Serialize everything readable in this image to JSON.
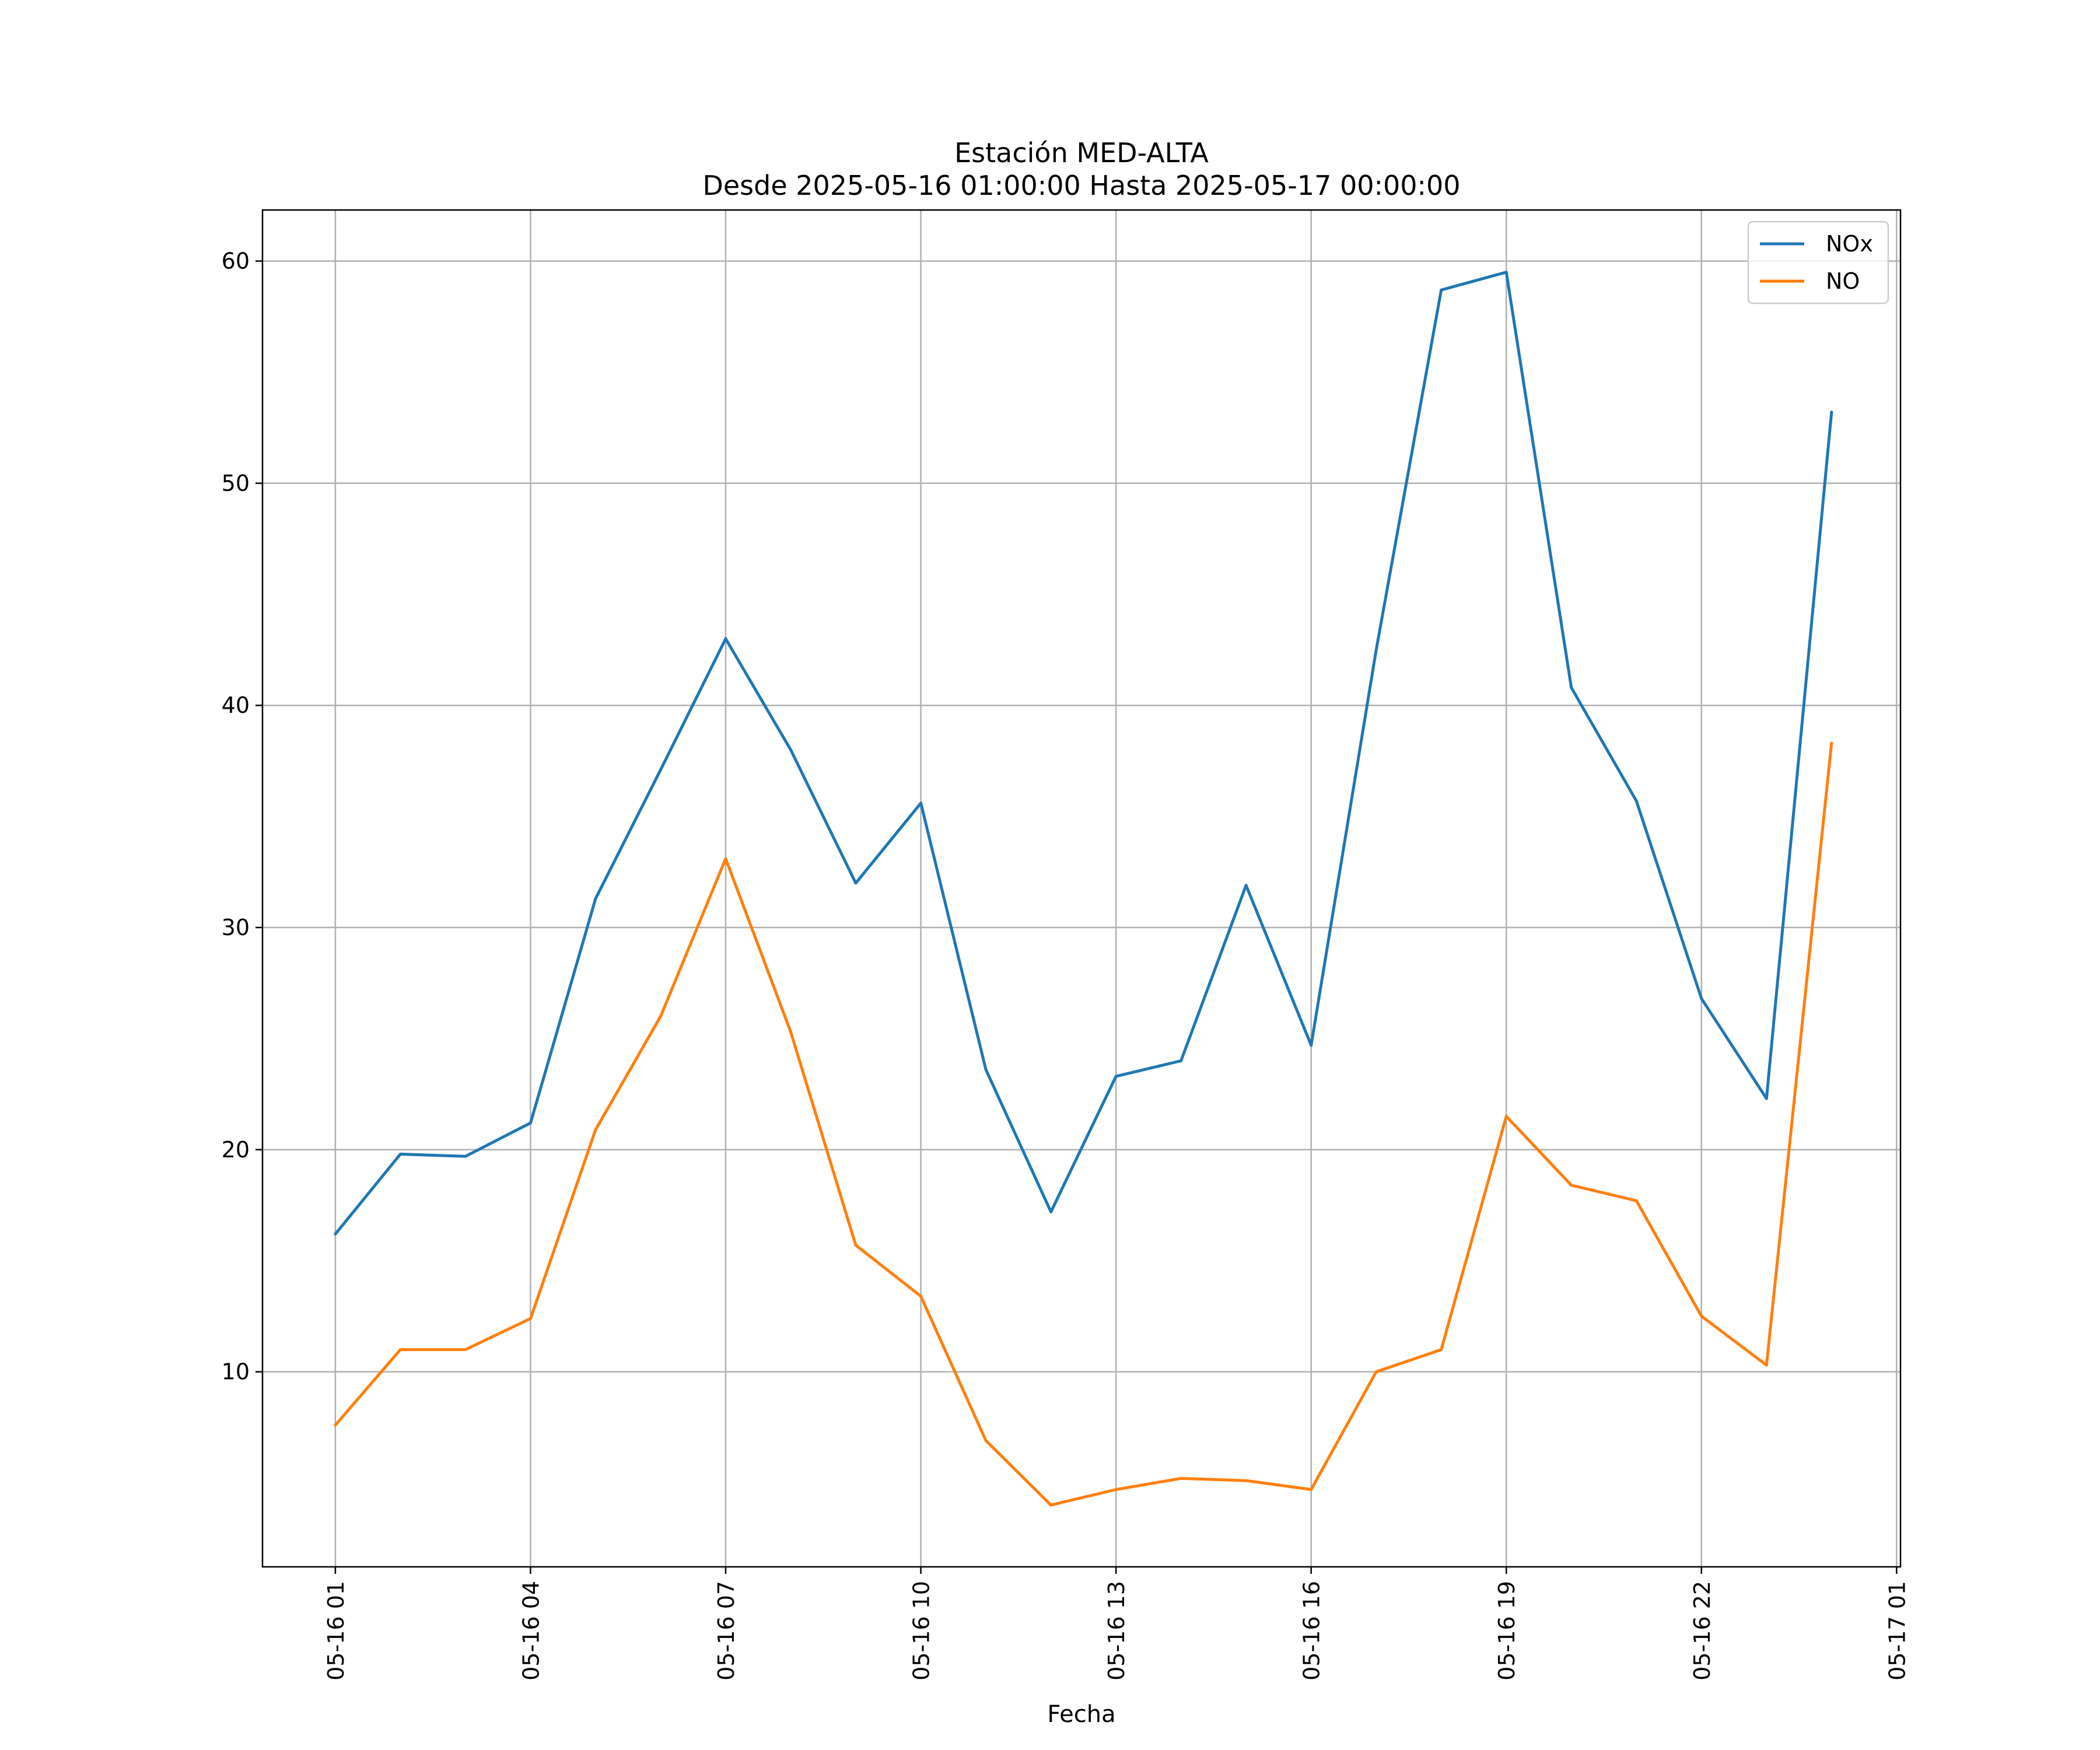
{
  "chart_data": {
    "type": "line",
    "title": "Estación MED-ALTA",
    "subtitle": "Desde 2025-05-16 01:00:00 Hasta 2025-05-17 00:00:00",
    "xlabel": "Fecha",
    "ylabel": "",
    "x": [
      "2025-05-16 01:00",
      "2025-05-16 02:00",
      "2025-05-16 03:00",
      "2025-05-16 04:00",
      "2025-05-16 05:00",
      "2025-05-16 06:00",
      "2025-05-16 07:00",
      "2025-05-16 08:00",
      "2025-05-16 09:00",
      "2025-05-16 10:00",
      "2025-05-16 11:00",
      "2025-05-16 12:00",
      "2025-05-16 13:00",
      "2025-05-16 14:00",
      "2025-05-16 15:00",
      "2025-05-16 16:00",
      "2025-05-16 17:00",
      "2025-05-16 18:00",
      "2025-05-16 19:00",
      "2025-05-16 20:00",
      "2025-05-16 21:00",
      "2025-05-16 22:00",
      "2025-05-16 23:00",
      "2025-05-17 00:00"
    ],
    "series": [
      {
        "name": "NOx",
        "color": "#1f77b4",
        "values": [
          16.2,
          19.8,
          19.7,
          21.2,
          31.3,
          37.1,
          43.0,
          38.0,
          32.0,
          35.6,
          23.6,
          17.2,
          23.3,
          24.0,
          31.9,
          24.7,
          42.5,
          58.7,
          59.5,
          40.8,
          35.7,
          26.8,
          22.3,
          53.2
        ]
      },
      {
        "name": "NO",
        "color": "#ff7f0e",
        "values": [
          7.6,
          11.0,
          11.0,
          12.4,
          20.9,
          26.0,
          33.1,
          25.3,
          15.7,
          13.4,
          6.9,
          4.0,
          4.7,
          5.2,
          5.1,
          4.7,
          10.0,
          11.0,
          21.5,
          18.4,
          17.7,
          12.5,
          10.3,
          38.3
        ]
      }
    ],
    "xticks": [
      "05-16 01",
      "05-16 04",
      "05-16 07",
      "05-16 10",
      "05-16 13",
      "05-16 16",
      "05-16 19",
      "05-16 22",
      "05-17 01"
    ],
    "xticks_hour_index": [
      0,
      3,
      6,
      9,
      12,
      15,
      18,
      21,
      24
    ],
    "xlim_hour_index": [
      -1.12,
      24.06
    ],
    "yticks": [
      10,
      20,
      30,
      40,
      50,
      60
    ],
    "ylim": [
      1.22,
      62.3
    ],
    "grid": true,
    "legend": "top-right"
  }
}
